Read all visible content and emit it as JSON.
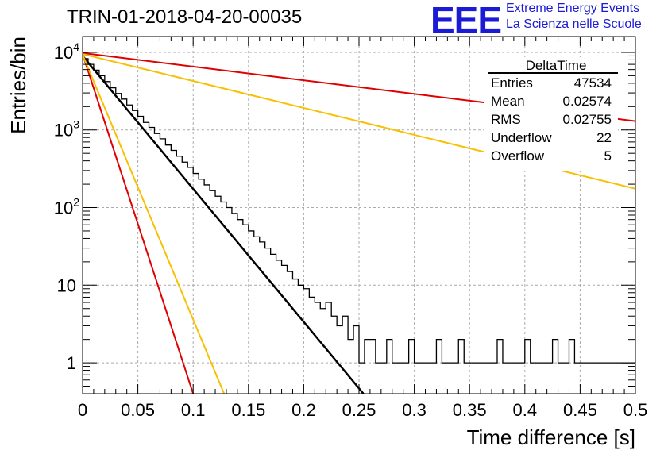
{
  "title": "TRIN-01-2018-04-20-00035",
  "logo": {
    "mark": "EEE",
    "line1": "Extreme Energy Events",
    "line2": "La Scienza nelle Scuole",
    "color": "#1b1bd6"
  },
  "stats_box": {
    "title": "DeltaTime",
    "rows": [
      {
        "label": "Entries",
        "value": "47534"
      },
      {
        "label": "Mean",
        "value": "0.02574"
      },
      {
        "label": "RMS",
        "value": "0.02755"
      },
      {
        "label": "Underflow",
        "value": "22"
      },
      {
        "label": "Overflow",
        "value": "5"
      }
    ]
  },
  "chart_data": {
    "type": "line",
    "xlabel": "Time difference [s]",
    "ylabel": "Entries/bin",
    "xlim": [
      0,
      0.5
    ],
    "ylim": [
      0.4,
      16000
    ],
    "yscale": "log",
    "grid": true,
    "x_ticks": [
      "0",
      "0.05",
      "0.1",
      "0.15",
      "0.2",
      "0.25",
      "0.3",
      "0.35",
      "0.4",
      "0.45",
      "0.5"
    ],
    "y_ticks": [
      {
        "value": 1,
        "label": "1"
      },
      {
        "value": 10,
        "label": "10"
      },
      {
        "value": 100,
        "label": "10",
        "exp": "2"
      },
      {
        "value": 1000,
        "label": "10",
        "exp": "3"
      },
      {
        "value": 10000,
        "label": "10",
        "exp": "4"
      }
    ],
    "histogram": {
      "color": "#000000",
      "bin_width": 0.005,
      "bins": [
        [
          0.0,
          8300
        ],
        [
          0.005,
          7000
        ],
        [
          0.01,
          5900
        ],
        [
          0.015,
          5000
        ],
        [
          0.02,
          4200
        ],
        [
          0.025,
          3500
        ],
        [
          0.03,
          2950
        ],
        [
          0.035,
          2500
        ],
        [
          0.04,
          2100
        ],
        [
          0.045,
          1780
        ],
        [
          0.05,
          1500
        ],
        [
          0.055,
          1250
        ],
        [
          0.06,
          1080
        ],
        [
          0.065,
          900
        ],
        [
          0.07,
          770
        ],
        [
          0.075,
          640
        ],
        [
          0.08,
          545
        ],
        [
          0.085,
          460
        ],
        [
          0.09,
          385
        ],
        [
          0.095,
          330
        ],
        [
          0.1,
          275
        ],
        [
          0.105,
          232
        ],
        [
          0.11,
          196
        ],
        [
          0.115,
          165
        ],
        [
          0.12,
          140
        ],
        [
          0.125,
          118
        ],
        [
          0.13,
          100
        ],
        [
          0.135,
          84
        ],
        [
          0.14,
          70
        ],
        [
          0.145,
          60
        ],
        [
          0.15,
          50
        ],
        [
          0.155,
          42
        ],
        [
          0.16,
          36
        ],
        [
          0.165,
          30
        ],
        [
          0.17,
          25
        ],
        [
          0.175,
          21
        ],
        [
          0.18,
          18
        ],
        [
          0.185,
          15
        ],
        [
          0.19,
          12
        ],
        [
          0.195,
          10
        ],
        [
          0.2,
          9
        ],
        [
          0.205,
          7
        ],
        [
          0.21,
          6
        ],
        [
          0.215,
          5
        ],
        [
          0.22,
          6
        ],
        [
          0.225,
          4
        ],
        [
          0.23,
          3
        ],
        [
          0.235,
          4
        ],
        [
          0.24,
          2
        ],
        [
          0.245,
          3
        ],
        [
          0.25,
          1
        ],
        [
          0.255,
          2
        ],
        [
          0.26,
          2
        ],
        [
          0.265,
          1
        ],
        [
          0.27,
          1
        ],
        [
          0.275,
          2
        ],
        [
          0.28,
          1
        ],
        [
          0.285,
          1
        ],
        [
          0.29,
          1
        ],
        [
          0.295,
          2
        ],
        [
          0.3,
          1
        ],
        [
          0.305,
          1
        ],
        [
          0.31,
          1
        ],
        [
          0.315,
          1
        ],
        [
          0.32,
          2
        ],
        [
          0.325,
          1
        ],
        [
          0.33,
          1
        ],
        [
          0.335,
          1
        ],
        [
          0.34,
          2
        ],
        [
          0.345,
          1
        ],
        [
          0.35,
          1
        ],
        [
          0.355,
          1
        ],
        [
          0.36,
          1
        ],
        [
          0.365,
          1
        ],
        [
          0.37,
          1
        ],
        [
          0.375,
          2
        ],
        [
          0.38,
          1
        ],
        [
          0.385,
          1
        ],
        [
          0.39,
          1
        ],
        [
          0.395,
          1
        ],
        [
          0.4,
          2
        ],
        [
          0.405,
          1
        ],
        [
          0.41,
          1
        ],
        [
          0.415,
          1
        ],
        [
          0.42,
          1
        ],
        [
          0.425,
          2
        ],
        [
          0.43,
          1
        ],
        [
          0.435,
          1
        ],
        [
          0.44,
          2
        ],
        [
          0.445,
          1
        ],
        [
          0.45,
          1
        ],
        [
          0.455,
          1
        ],
        [
          0.46,
          1
        ],
        [
          0.465,
          1
        ],
        [
          0.47,
          1
        ],
        [
          0.475,
          1
        ],
        [
          0.48,
          1
        ],
        [
          0.485,
          1
        ],
        [
          0.49,
          1
        ],
        [
          0.495,
          1
        ]
      ]
    },
    "series": [
      {
        "color": "#000000",
        "width": 2.5,
        "points": [
          [
            0,
            9000
          ],
          [
            0.254,
            0.4
          ]
        ]
      },
      {
        "color": "#e00000",
        "width": 2,
        "points": [
          [
            0,
            9500
          ],
          [
            0.1,
            0.4
          ]
        ]
      },
      {
        "color": "#f7c000",
        "width": 2,
        "points": [
          [
            0,
            9300
          ],
          [
            0.128,
            0.4
          ]
        ]
      },
      {
        "color": "#e00000",
        "width": 2,
        "points": [
          [
            0,
            9800
          ],
          [
            0.5,
            1300
          ]
        ]
      },
      {
        "color": "#f7c000",
        "width": 2,
        "points": [
          [
            0,
            9500
          ],
          [
            0.5,
            175
          ]
        ]
      }
    ]
  }
}
